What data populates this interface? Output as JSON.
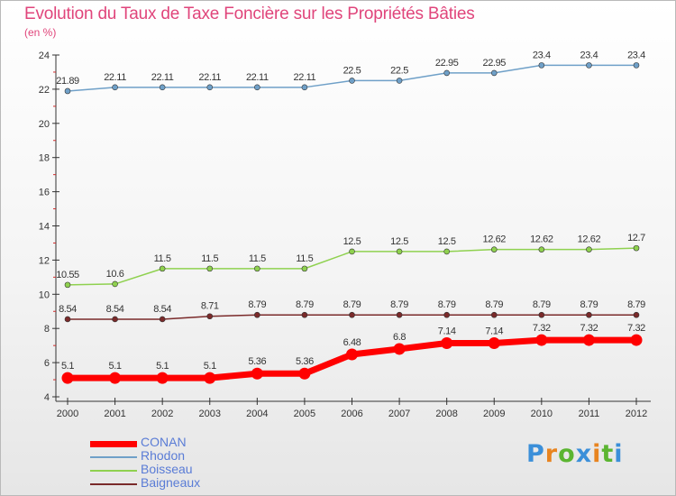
{
  "page": {
    "title": "Evolution du Taux de Taxe Foncière sur les Propriétés Bâties",
    "subtitle": "(en %)"
  },
  "logo": {
    "text": "Proxiti",
    "letters": [
      {
        "ch": "P",
        "color": "#3b8fd9"
      },
      {
        "ch": "r",
        "color": "#e8841f"
      },
      {
        "ch": "o",
        "color": "#5bb531"
      },
      {
        "ch": "x",
        "color": "#3b8fd9"
      },
      {
        "ch": "i",
        "color": "#e8841f"
      },
      {
        "ch": "t",
        "color": "#5bb531"
      },
      {
        "ch": "i",
        "color": "#3b8fd9"
      }
    ]
  },
  "chart_data": {
    "type": "line",
    "title": "Evolution du Taux de Taxe Foncière sur les Propriétés Bâties",
    "ylabel": "(en %)",
    "xlabel": "",
    "x": [
      2000,
      2001,
      2002,
      2003,
      2004,
      2005,
      2006,
      2007,
      2008,
      2009,
      2010,
      2011,
      2012
    ],
    "ylim": [
      4,
      24
    ],
    "yticks": [
      4,
      6,
      8,
      10,
      12,
      14,
      16,
      18,
      20,
      22,
      24
    ],
    "grid": false,
    "legend_position": "bottom-left",
    "series": [
      {
        "name": "Rhodon",
        "color": "#6fa0c8",
        "values": [
          21.89,
          22.11,
          22.11,
          22.11,
          22.11,
          22.11,
          22.5,
          22.5,
          22.95,
          22.95,
          23.4,
          23.4,
          23.4
        ],
        "labels": [
          "21.89",
          "22.11",
          "22.11",
          "22.11",
          "22.11",
          "22.11",
          "22.5",
          "22.5",
          "22.95",
          "22.95",
          "23.4",
          "23.4",
          "23.4"
        ]
      },
      {
        "name": "Boisseau",
        "color": "#8fd14f",
        "values": [
          10.55,
          10.6,
          11.5,
          11.5,
          11.5,
          11.5,
          12.5,
          12.5,
          12.5,
          12.62,
          12.62,
          12.62,
          12.7
        ],
        "labels": [
          "10.55",
          "10.6",
          "11.5",
          "11.5",
          "11.5",
          "11.5",
          "12.5",
          "12.5",
          "12.5",
          "12.62",
          "12.62",
          "12.62",
          "12.7"
        ]
      },
      {
        "name": "Baigneaux",
        "color": "#7a2a2a",
        "values": [
          8.54,
          8.54,
          8.54,
          8.71,
          8.79,
          8.79,
          8.79,
          8.79,
          8.79,
          8.79,
          8.79,
          8.79,
          8.79
        ],
        "labels": [
          "8.54",
          "8.54",
          "8.54",
          "8.71",
          "8.79",
          "8.79",
          "8.79",
          "8.79",
          "8.79",
          "8.79",
          "8.79",
          "8.79",
          "8.79"
        ]
      },
      {
        "name": "CONAN",
        "color": "#ff0000",
        "values": [
          5.1,
          5.1,
          5.1,
          5.1,
          5.36,
          5.36,
          6.48,
          6.8,
          7.14,
          7.14,
          7.32,
          7.32,
          7.32
        ],
        "labels": [
          "5.1",
          "5.1",
          "5.1",
          "5.1",
          "5.36",
          "5.36",
          "6.48",
          "6.8",
          "7.14",
          "7.14",
          "7.32",
          "7.32",
          "7.32"
        ]
      }
    ],
    "legend_order": [
      "CONAN",
      "Rhodon",
      "Boisseau",
      "Baigneaux"
    ]
  }
}
